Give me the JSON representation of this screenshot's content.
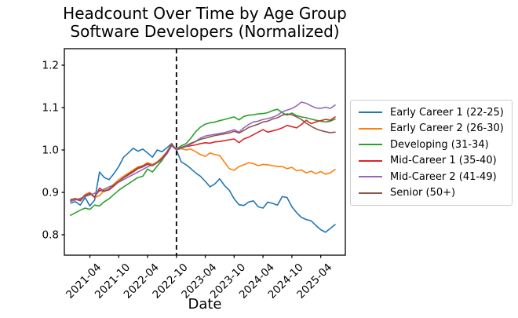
{
  "figure": {
    "title_line1": "Headcount Over Time by Age Group",
    "title_line2": "Software Developers (Normalized)",
    "xlabel": "Date"
  },
  "chart_data": {
    "type": "line",
    "title": "Headcount Over Time by Age Group",
    "subtitle": "Software Developers (Normalized)",
    "xlabel": "Date",
    "ylabel": "",
    "grid": false,
    "legend_position": "outside-right",
    "ylim": [
      0.752,
      1.239
    ],
    "yticks": [
      0.8,
      0.9,
      1.0,
      1.1,
      1.2
    ],
    "xtick_labels": [
      "2021-04",
      "2021-10",
      "2022-04",
      "2022-10",
      "2023-04",
      "2023-10",
      "2024-04",
      "2024-10",
      "2025-04"
    ],
    "event_line": {
      "date": "2022-10",
      "style": "dashed",
      "color": "#000000"
    },
    "x": [
      "2020-12",
      "2021-01",
      "2021-02",
      "2021-03",
      "2021-04",
      "2021-05",
      "2021-06",
      "2021-07",
      "2021-08",
      "2021-09",
      "2021-10",
      "2021-11",
      "2021-12",
      "2022-01",
      "2022-02",
      "2022-03",
      "2022-04",
      "2022-05",
      "2022-06",
      "2022-07",
      "2022-08",
      "2022-09",
      "2022-10",
      "2022-11",
      "2022-12",
      "2023-01",
      "2023-02",
      "2023-03",
      "2023-04",
      "2023-05",
      "2023-06",
      "2023-07",
      "2023-08",
      "2023-09",
      "2023-10",
      "2023-11",
      "2023-12",
      "2024-01",
      "2024-02",
      "2024-03",
      "2024-04",
      "2024-05",
      "2024-06",
      "2024-07",
      "2024-08",
      "2024-09",
      "2024-10",
      "2024-11",
      "2024-12",
      "2025-01",
      "2025-02",
      "2025-03",
      "2025-04",
      "2025-05",
      "2025-06",
      "2025-07"
    ],
    "series": [
      {
        "name": "Early Career 1 (22-25)",
        "color": "#1f77b4",
        "values": [
          0.875,
          0.878,
          0.87,
          0.888,
          0.868,
          0.882,
          0.948,
          0.935,
          0.93,
          0.944,
          0.961,
          0.983,
          0.993,
          1.004,
          0.997,
          1.002,
          0.993,
          0.983,
          1.0,
          0.996,
          1.005,
          1.015,
          1.0,
          0.972,
          0.965,
          0.956,
          0.946,
          0.938,
          0.926,
          0.913,
          0.92,
          0.932,
          0.916,
          0.905,
          0.885,
          0.871,
          0.869,
          0.877,
          0.88,
          0.866,
          0.863,
          0.877,
          0.874,
          0.87,
          0.89,
          0.888,
          0.866,
          0.852,
          0.841,
          0.836,
          0.833,
          0.822,
          0.812,
          0.806,
          0.815,
          0.824
        ]
      },
      {
        "name": "Early Career 2 (26-30)",
        "color": "#ff7f0e",
        "values": [
          0.883,
          0.886,
          0.882,
          0.895,
          0.9,
          0.888,
          0.892,
          0.905,
          0.908,
          0.92,
          0.93,
          0.938,
          0.945,
          0.953,
          0.96,
          0.963,
          0.97,
          0.966,
          0.972,
          0.983,
          0.995,
          1.013,
          1.0,
          1.003,
          1.0,
          1.002,
          0.996,
          0.989,
          0.985,
          0.993,
          0.989,
          0.987,
          0.971,
          0.956,
          0.952,
          0.961,
          0.965,
          0.97,
          0.968,
          0.963,
          0.966,
          0.965,
          0.963,
          0.961,
          0.961,
          0.956,
          0.959,
          0.951,
          0.953,
          0.946,
          0.95,
          0.944,
          0.949,
          0.943,
          0.946,
          0.954
        ]
      },
      {
        "name": "Developing (31-34)",
        "color": "#2ca02c",
        "values": [
          0.846,
          0.852,
          0.858,
          0.863,
          0.86,
          0.87,
          0.868,
          0.878,
          0.885,
          0.895,
          0.905,
          0.913,
          0.92,
          0.928,
          0.935,
          0.938,
          0.955,
          0.948,
          0.962,
          0.975,
          0.993,
          1.01,
          1.002,
          1.01,
          1.015,
          1.028,
          1.043,
          1.054,
          1.061,
          1.064,
          1.066,
          1.069,
          1.072,
          1.075,
          1.078,
          1.071,
          1.079,
          1.082,
          1.083,
          1.085,
          1.086,
          1.088,
          1.093,
          1.096,
          1.088,
          1.082,
          1.087,
          1.081,
          1.078,
          1.076,
          1.073,
          1.07,
          1.068,
          1.066,
          1.068,
          1.073
        ]
      },
      {
        "name": "Mid-Career 1 (35-40)",
        "color": "#d62728",
        "values": [
          0.881,
          0.884,
          0.88,
          0.893,
          0.898,
          0.888,
          0.91,
          0.903,
          0.906,
          0.915,
          0.925,
          0.935,
          0.943,
          0.95,
          0.958,
          0.962,
          0.968,
          0.963,
          0.97,
          0.98,
          0.995,
          1.013,
          1.001,
          1.005,
          1.008,
          1.01,
          1.012,
          1.015,
          1.017,
          1.016,
          1.019,
          1.02,
          1.022,
          1.024,
          1.026,
          1.017,
          1.026,
          1.03,
          1.036,
          1.042,
          1.048,
          1.042,
          1.045,
          1.048,
          1.052,
          1.058,
          1.055,
          1.052,
          1.06,
          1.07,
          1.062,
          1.066,
          1.069,
          1.072,
          1.07,
          1.078
        ]
      },
      {
        "name": "Mid-Career 2 (41-49)",
        "color": "#9467bd",
        "values": [
          0.879,
          0.882,
          0.886,
          0.89,
          0.894,
          0.898,
          0.903,
          0.908,
          0.913,
          0.918,
          0.924,
          0.93,
          0.936,
          0.942,
          0.948,
          0.954,
          0.96,
          0.965,
          0.97,
          0.977,
          0.99,
          1.01,
          1.0,
          1.004,
          1.008,
          1.014,
          1.02,
          1.028,
          1.033,
          1.035,
          1.037,
          1.039,
          1.041,
          1.044,
          1.048,
          1.042,
          1.052,
          1.06,
          1.066,
          1.068,
          1.072,
          1.074,
          1.077,
          1.082,
          1.09,
          1.094,
          1.098,
          1.104,
          1.113,
          1.11,
          1.104,
          1.099,
          1.098,
          1.101,
          1.098,
          1.106
        ]
      },
      {
        "name": "Senior (50+)",
        "color": "#8c564b",
        "values": [
          0.882,
          0.885,
          0.882,
          0.892,
          0.897,
          0.89,
          0.905,
          0.902,
          0.908,
          0.917,
          0.926,
          0.934,
          0.941,
          0.948,
          0.956,
          0.96,
          0.966,
          0.963,
          0.97,
          0.979,
          0.993,
          1.012,
          1.002,
          1.006,
          1.01,
          1.016,
          1.02,
          1.025,
          1.028,
          1.031,
          1.034,
          1.036,
          1.038,
          1.04,
          1.044,
          1.04,
          1.046,
          1.053,
          1.057,
          1.061,
          1.066,
          1.068,
          1.073,
          1.076,
          1.082,
          1.085,
          1.083,
          1.078,
          1.072,
          1.063,
          1.056,
          1.05,
          1.046,
          1.043,
          1.041,
          1.042
        ]
      }
    ]
  }
}
